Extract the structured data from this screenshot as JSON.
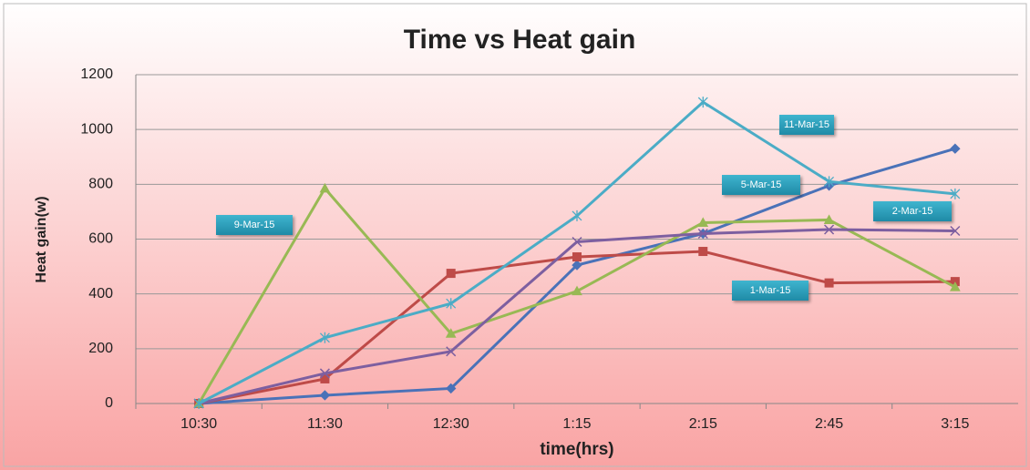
{
  "chart_data": {
    "type": "line",
    "title": "Time vs Heat gain",
    "x_label": "time(hrs)",
    "y_label": "Heat gain(w)",
    "categories": [
      "10:30",
      "11:30",
      "12:30",
      "1:15",
      "2:15",
      "2:45",
      "3:15"
    ],
    "series": [
      {
        "name": "5-Mar-15",
        "color": "#4a72b8",
        "marker": "diamond",
        "values": [
          0,
          30,
          55,
          505,
          620,
          795,
          930
        ]
      },
      {
        "name": "1-Mar-15",
        "color": "#be4b48",
        "marker": "square",
        "values": [
          0,
          90,
          475,
          535,
          555,
          440,
          445
        ]
      },
      {
        "name": "9-Mar-15",
        "color": "#98b954",
        "marker": "triangle",
        "values": [
          0,
          785,
          255,
          410,
          660,
          670,
          425
        ]
      },
      {
        "name": "2-Mar-15",
        "color": "#7d5fa0",
        "marker": "x",
        "values": [
          0,
          110,
          190,
          590,
          620,
          635,
          630
        ]
      },
      {
        "name": "11-Mar-15",
        "color": "#4bacc6",
        "marker": "star",
        "values": [
          0,
          240,
          365,
          685,
          1100,
          810,
          765
        ]
      }
    ],
    "ylim": [
      0,
      1200
    ],
    "yticks": [
      0,
      200,
      400,
      600,
      800,
      1000,
      1200
    ],
    "grid": true
  }
}
